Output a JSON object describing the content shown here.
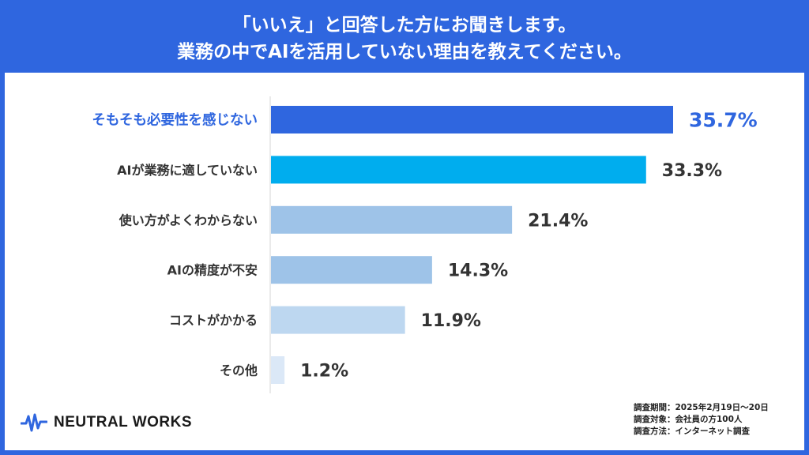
{
  "header": {
    "line1": "「いいえ」と回答した方にお聞きします。",
    "line2": "業務の中でAIを活用していない理由を教えてください。"
  },
  "chart_data": {
    "type": "bar",
    "orientation": "horizontal",
    "categories": [
      "そもそも必要性を感じない",
      "AIが業務に適していない",
      "使い方がよくわからない",
      "AIの精度が不安",
      "コストがかかる",
      "その他"
    ],
    "values": [
      35.7,
      33.3,
      21.4,
      14.3,
      11.9,
      1.2
    ],
    "value_labels": [
      "35.7%",
      "33.3%",
      "21.4%",
      "14.3%",
      "11.9%",
      "1.2%"
    ],
    "unit": "%",
    "xlim": [
      0,
      36
    ],
    "grid": false,
    "legend": "none",
    "colors": [
      "#2f66df",
      "#00adee",
      "#9ec3e8",
      "#9ec3e8",
      "#bdd7f0",
      "#dbe8f7"
    ],
    "highlight_color": "#2f66df",
    "label_color": "#333333"
  },
  "survey": {
    "period": "調査期間：2025年2月19日〜20日",
    "target": "調査対象：会社員の方100人",
    "method": "調査方法：インターネット調査"
  },
  "brand": {
    "name": "NEUTRAL WORKS",
    "logo_icon": "pulse-wave-icon",
    "color": "#2f66df"
  }
}
